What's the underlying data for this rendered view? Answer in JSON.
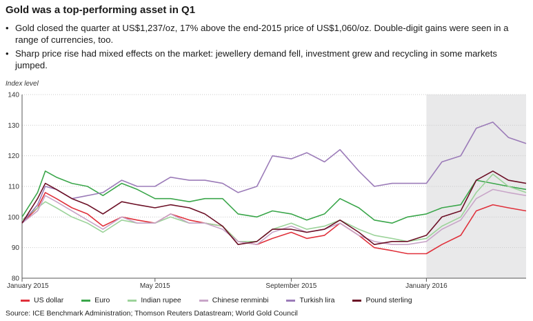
{
  "header": {
    "title": "Gold was a top-performing asset in Q1",
    "bullets": [
      "Gold closed the quarter at US$1,237/oz, 17% above the end-2015 price of US$1,060/oz. Double-digit gains were seen in a range of currencies, too.",
      "Sharp price rise had mixed effects on the market: jewellery demand fell, investment grew and recycling in some markets jumped."
    ]
  },
  "source": "Source: ICE Benchmark Administration; Thomson Reuters Datastream; World Gold Council",
  "chart_data": {
    "type": "line",
    "ylabel": "Index level",
    "xlabel": "",
    "ylim": [
      80,
      140
    ],
    "yticks": [
      80,
      90,
      100,
      110,
      120,
      130,
      140
    ],
    "xlim": [
      "2015-01-01",
      "2016-03-31"
    ],
    "xticks": [
      {
        "date": "2015-01-01",
        "label": "January 2015"
      },
      {
        "date": "2015-05-01",
        "label": "May 2015"
      },
      {
        "date": "2015-09-01",
        "label": "September 2015"
      },
      {
        "date": "2016-01-01",
        "label": "January 2016"
      }
    ],
    "shaded_region": [
      "2016-01-01",
      "2016-03-31"
    ],
    "grid": true,
    "legend_position": "bottom",
    "series": [
      {
        "name": "US dollar",
        "color": "#e0303a",
        "points": [
          [
            "2015-01-01",
            98
          ],
          [
            "2015-01-15",
            103
          ],
          [
            "2015-01-22",
            108
          ],
          [
            "2015-02-01",
            106
          ],
          [
            "2015-02-15",
            103
          ],
          [
            "2015-03-01",
            101
          ],
          [
            "2015-03-15",
            97
          ],
          [
            "2015-04-01",
            100
          ],
          [
            "2015-04-15",
            99
          ],
          [
            "2015-05-01",
            98
          ],
          [
            "2015-05-15",
            101
          ],
          [
            "2015-06-01",
            99
          ],
          [
            "2015-06-15",
            98
          ],
          [
            "2015-07-01",
            97
          ],
          [
            "2015-07-15",
            92
          ],
          [
            "2015-08-01",
            91
          ],
          [
            "2015-08-15",
            93
          ],
          [
            "2015-09-01",
            95
          ],
          [
            "2015-09-15",
            93
          ],
          [
            "2015-10-01",
            94
          ],
          [
            "2015-10-15",
            98
          ],
          [
            "2015-11-01",
            94
          ],
          [
            "2015-11-15",
            90
          ],
          [
            "2015-12-01",
            89
          ],
          [
            "2015-12-15",
            88
          ],
          [
            "2016-01-01",
            88
          ],
          [
            "2016-01-15",
            91
          ],
          [
            "2016-02-01",
            94
          ],
          [
            "2016-02-15",
            102
          ],
          [
            "2016-03-01",
            104
          ],
          [
            "2016-03-15",
            103
          ],
          [
            "2016-03-31",
            102
          ]
        ]
      },
      {
        "name": "Euro",
        "color": "#3aa64a",
        "points": [
          [
            "2015-01-01",
            100
          ],
          [
            "2015-01-15",
            108
          ],
          [
            "2015-01-22",
            115
          ],
          [
            "2015-02-01",
            113
          ],
          [
            "2015-02-15",
            111
          ],
          [
            "2015-03-01",
            110
          ],
          [
            "2015-03-15",
            107
          ],
          [
            "2015-04-01",
            111
          ],
          [
            "2015-04-15",
            109
          ],
          [
            "2015-05-01",
            106
          ],
          [
            "2015-05-15",
            106
          ],
          [
            "2015-06-01",
            105
          ],
          [
            "2015-06-15",
            106
          ],
          [
            "2015-07-01",
            106
          ],
          [
            "2015-07-15",
            101
          ],
          [
            "2015-08-01",
            100
          ],
          [
            "2015-08-15",
            102
          ],
          [
            "2015-09-01",
            101
          ],
          [
            "2015-09-15",
            99
          ],
          [
            "2015-10-01",
            101
          ],
          [
            "2015-10-15",
            106
          ],
          [
            "2015-11-01",
            103
          ],
          [
            "2015-11-15",
            99
          ],
          [
            "2015-12-01",
            98
          ],
          [
            "2015-12-15",
            100
          ],
          [
            "2016-01-01",
            101
          ],
          [
            "2016-01-15",
            103
          ],
          [
            "2016-02-01",
            104
          ],
          [
            "2016-02-15",
            112
          ],
          [
            "2016-03-01",
            111
          ],
          [
            "2016-03-15",
            110
          ],
          [
            "2016-03-31",
            109
          ]
        ]
      },
      {
        "name": "Indian rupee",
        "color": "#9cd39a",
        "points": [
          [
            "2015-01-01",
            99
          ],
          [
            "2015-01-15",
            103
          ],
          [
            "2015-01-22",
            105
          ],
          [
            "2015-02-01",
            103
          ],
          [
            "2015-02-15",
            100
          ],
          [
            "2015-03-01",
            98
          ],
          [
            "2015-03-15",
            95
          ],
          [
            "2015-04-01",
            99
          ],
          [
            "2015-04-15",
            98
          ],
          [
            "2015-05-01",
            98
          ],
          [
            "2015-05-15",
            100
          ],
          [
            "2015-06-01",
            98
          ],
          [
            "2015-06-15",
            98
          ],
          [
            "2015-07-01",
            97
          ],
          [
            "2015-07-15",
            92
          ],
          [
            "2015-08-01",
            92
          ],
          [
            "2015-08-15",
            96
          ],
          [
            "2015-09-01",
            98
          ],
          [
            "2015-09-15",
            96
          ],
          [
            "2015-10-01",
            97
          ],
          [
            "2015-10-15",
            99
          ],
          [
            "2015-11-01",
            96
          ],
          [
            "2015-11-15",
            94
          ],
          [
            "2015-12-01",
            93
          ],
          [
            "2015-12-15",
            92
          ],
          [
            "2016-01-01",
            93
          ],
          [
            "2016-01-15",
            97
          ],
          [
            "2016-02-01",
            100
          ],
          [
            "2016-02-15",
            108
          ],
          [
            "2016-03-01",
            114
          ],
          [
            "2016-03-15",
            110
          ],
          [
            "2016-03-31",
            108
          ]
        ]
      },
      {
        "name": "Chinese renminbi",
        "color": "#c8a5c8",
        "points": [
          [
            "2015-01-01",
            98
          ],
          [
            "2015-01-15",
            102
          ],
          [
            "2015-01-22",
            107
          ],
          [
            "2015-02-01",
            105
          ],
          [
            "2015-02-15",
            102
          ],
          [
            "2015-03-01",
            99
          ],
          [
            "2015-03-15",
            96
          ],
          [
            "2015-04-01",
            100
          ],
          [
            "2015-04-15",
            98
          ],
          [
            "2015-05-01",
            98
          ],
          [
            "2015-05-15",
            101
          ],
          [
            "2015-06-01",
            98
          ],
          [
            "2015-06-15",
            98
          ],
          [
            "2015-07-01",
            96
          ],
          [
            "2015-07-15",
            92
          ],
          [
            "2015-08-01",
            91
          ],
          [
            "2015-08-15",
            95
          ],
          [
            "2015-09-01",
            97
          ],
          [
            "2015-09-15",
            95
          ],
          [
            "2015-10-01",
            96
          ],
          [
            "2015-10-15",
            98
          ],
          [
            "2015-11-01",
            94
          ],
          [
            "2015-11-15",
            92
          ],
          [
            "2015-12-01",
            91
          ],
          [
            "2015-12-15",
            91
          ],
          [
            "2016-01-01",
            92
          ],
          [
            "2016-01-15",
            96
          ],
          [
            "2016-02-01",
            99
          ],
          [
            "2016-02-15",
            106
          ],
          [
            "2016-03-01",
            109
          ],
          [
            "2016-03-15",
            108
          ],
          [
            "2016-03-31",
            107
          ]
        ]
      },
      {
        "name": "Turkish lira",
        "color": "#9b7bb8",
        "points": [
          [
            "2015-01-01",
            98
          ],
          [
            "2015-01-15",
            104
          ],
          [
            "2015-01-22",
            110
          ],
          [
            "2015-02-01",
            109
          ],
          [
            "2015-02-15",
            106
          ],
          [
            "2015-03-01",
            107
          ],
          [
            "2015-03-15",
            108
          ],
          [
            "2015-04-01",
            112
          ],
          [
            "2015-04-15",
            110
          ],
          [
            "2015-05-01",
            110
          ],
          [
            "2015-05-15",
            113
          ],
          [
            "2015-06-01",
            112
          ],
          [
            "2015-06-15",
            112
          ],
          [
            "2015-07-01",
            111
          ],
          [
            "2015-07-15",
            108
          ],
          [
            "2015-08-01",
            110
          ],
          [
            "2015-08-15",
            120
          ],
          [
            "2015-09-01",
            119
          ],
          [
            "2015-09-15",
            121
          ],
          [
            "2015-10-01",
            118
          ],
          [
            "2015-10-15",
            122
          ],
          [
            "2015-11-01",
            115
          ],
          [
            "2015-11-15",
            110
          ],
          [
            "2015-12-01",
            111
          ],
          [
            "2015-12-15",
            111
          ],
          [
            "2016-01-01",
            111
          ],
          [
            "2016-01-15",
            118
          ],
          [
            "2016-02-01",
            120
          ],
          [
            "2016-02-15",
            129
          ],
          [
            "2016-03-01",
            131
          ],
          [
            "2016-03-15",
            126
          ],
          [
            "2016-03-31",
            124
          ]
        ]
      },
      {
        "name": "Pound sterling",
        "color": "#6b0f25",
        "points": [
          [
            "2015-01-01",
            98
          ],
          [
            "2015-01-15",
            106
          ],
          [
            "2015-01-22",
            111
          ],
          [
            "2015-02-01",
            109
          ],
          [
            "2015-02-15",
            106
          ],
          [
            "2015-03-01",
            104
          ],
          [
            "2015-03-15",
            101
          ],
          [
            "2015-04-01",
            105
          ],
          [
            "2015-04-15",
            104
          ],
          [
            "2015-05-01",
            103
          ],
          [
            "2015-05-15",
            104
          ],
          [
            "2015-06-01",
            103
          ],
          [
            "2015-06-15",
            101
          ],
          [
            "2015-07-01",
            97
          ],
          [
            "2015-07-15",
            91
          ],
          [
            "2015-08-01",
            92
          ],
          [
            "2015-08-15",
            96
          ],
          [
            "2015-09-01",
            96
          ],
          [
            "2015-09-15",
            95
          ],
          [
            "2015-10-01",
            96
          ],
          [
            "2015-10-15",
            99
          ],
          [
            "2015-11-01",
            95
          ],
          [
            "2015-11-15",
            91
          ],
          [
            "2015-12-01",
            92
          ],
          [
            "2015-12-15",
            92
          ],
          [
            "2016-01-01",
            94
          ],
          [
            "2016-01-15",
            100
          ],
          [
            "2016-02-01",
            102
          ],
          [
            "2016-02-15",
            112
          ],
          [
            "2016-03-01",
            115
          ],
          [
            "2016-03-15",
            112
          ],
          [
            "2016-03-31",
            111
          ]
        ]
      }
    ]
  }
}
